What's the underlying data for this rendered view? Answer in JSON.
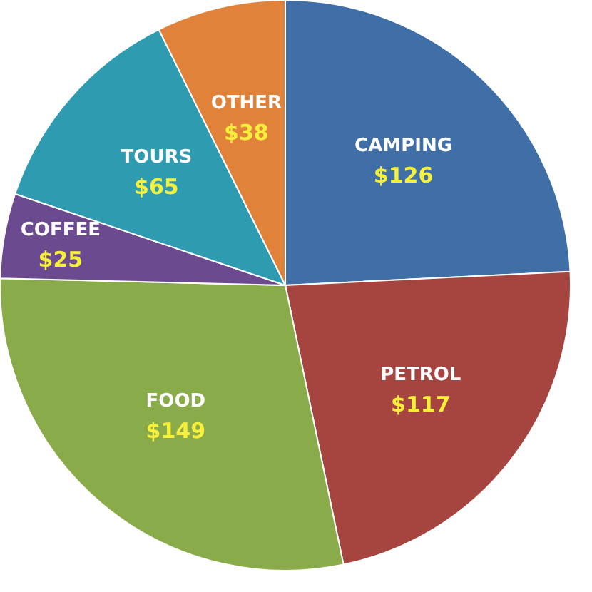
{
  "chart_data": {
    "type": "pie",
    "categories": [
      "CAMPING",
      "PETROL",
      "FOOD",
      "COFFEE",
      "TOURS",
      "OTHER"
    ],
    "values": [
      126,
      117,
      149,
      25,
      65,
      38
    ],
    "colors": [
      "#3f6fa6",
      "#a64540",
      "#8aab4a",
      "#6b4a8f",
      "#2e9bb0",
      "#e0823a"
    ],
    "value_labels": [
      "$126",
      "$117",
      "$149",
      "$25",
      "$65",
      "$38"
    ],
    "legend": false
  }
}
